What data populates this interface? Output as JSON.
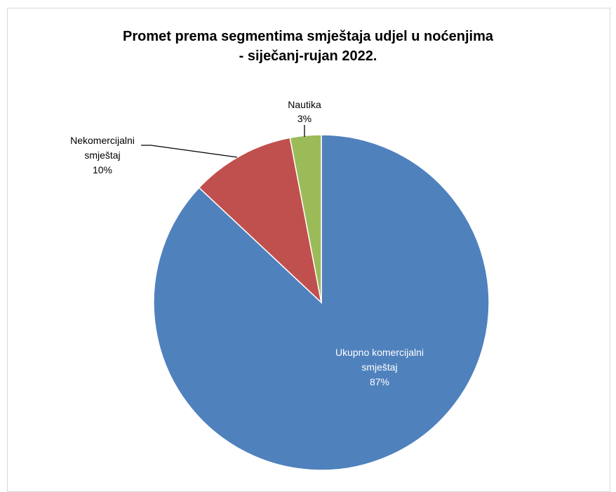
{
  "chart_data": {
    "type": "pie",
    "title_lines": [
      "Promet prema segmentima smještaja udjel u noćenjima",
      "- siječanj-rujan 2022."
    ],
    "slices": [
      {
        "label_lines": [
          "Ukupno komercijalni",
          "smještaj"
        ],
        "percent_label": "87%",
        "value": 87,
        "color": "#4f81bd"
      },
      {
        "label_lines": [
          "Nekomercijalni",
          "smještaj"
        ],
        "percent_label": "10%",
        "value": 10,
        "color": "#c0504d"
      },
      {
        "label_lines": [
          "Nautika"
        ],
        "percent_label": "3%",
        "value": 3,
        "color": "#9bbb59"
      }
    ]
  }
}
